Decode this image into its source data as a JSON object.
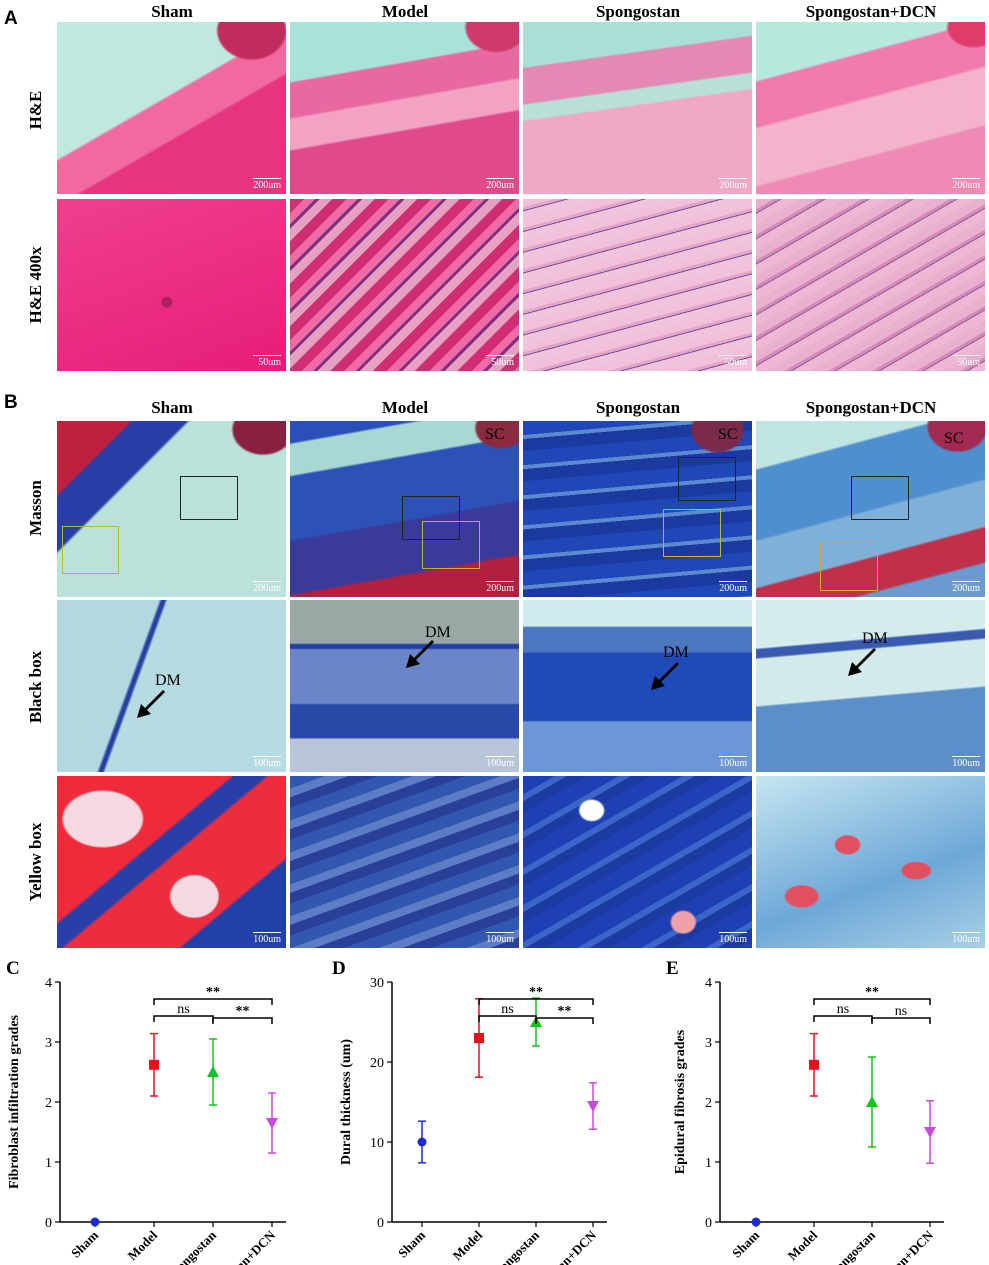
{
  "panel_a": {
    "letter": "A",
    "columns": [
      "Sham",
      "Model",
      "Spongostan",
      "Spongostan+DCN"
    ],
    "rows": [
      {
        "label": "H&E",
        "scale": "200um"
      },
      {
        "label": "H&E 400x",
        "scale": "50um"
      }
    ]
  },
  "panel_b": {
    "letter": "B",
    "columns": [
      "Sham",
      "Model",
      "Spongostan",
      "Spongostan+DCN"
    ],
    "rows": [
      {
        "label": "Masson",
        "scale": "200um"
      },
      {
        "label": "Black box",
        "scale": "100um"
      },
      {
        "label": "Yellow box",
        "scale": "100um"
      }
    ],
    "annotations": {
      "sc": "SC",
      "dm": "DM"
    }
  },
  "chart_data": [
    {
      "letter": "C",
      "type": "scatter",
      "categories": [
        "Sham",
        "Model",
        "Spongostan",
        "Spongostan+DCN"
      ],
      "ylabel": "Fibroblast infiltration grades",
      "ylim": [
        0,
        4
      ],
      "yticks": [
        0,
        1,
        2,
        3,
        4
      ],
      "values": [
        0,
        2.62,
        2.5,
        1.65
      ],
      "errors": [
        0,
        0.52,
        0.55,
        0.5
      ],
      "colors": [
        "#1a2bd6",
        "#e8101a",
        "#13c21f",
        "#c64bd8"
      ],
      "markers": [
        "circle",
        "square",
        "triangle-up",
        "triangle-down"
      ],
      "significance": [
        {
          "from": 1,
          "to": 2,
          "label": "ns"
        },
        {
          "from": 1,
          "to": 3,
          "label": "**"
        },
        {
          "from": 2,
          "to": 3,
          "label": "**"
        }
      ]
    },
    {
      "letter": "D",
      "type": "scatter",
      "categories": [
        "Sham",
        "Model",
        "Spongostan",
        "Spongostan+DCN"
      ],
      "ylabel": "Dural thickness (um)",
      "ylim": [
        0,
        30
      ],
      "yticks": [
        0,
        10,
        20,
        30
      ],
      "values": [
        10,
        23,
        25,
        14.5
      ],
      "errors": [
        2.6,
        4.9,
        3.0,
        2.9
      ],
      "colors": [
        "#1a2bd6",
        "#e8101a",
        "#13c21f",
        "#c64bd8"
      ],
      "markers": [
        "circle",
        "square",
        "triangle-up",
        "triangle-down"
      ],
      "significance": [
        {
          "from": 1,
          "to": 2,
          "label": "ns"
        },
        {
          "from": 1,
          "to": 3,
          "label": "**"
        },
        {
          "from": 2,
          "to": 3,
          "label": "**"
        }
      ]
    },
    {
      "letter": "E",
      "type": "scatter",
      "categories": [
        "Sham",
        "Model",
        "Spongostan",
        "Spongostan+DCN"
      ],
      "ylabel": "Epidural fibrosis grades",
      "ylim": [
        0,
        4
      ],
      "yticks": [
        0,
        1,
        2,
        3,
        4
      ],
      "values": [
        0,
        2.62,
        2.0,
        1.5
      ],
      "errors": [
        0,
        0.52,
        0.75,
        0.52
      ],
      "colors": [
        "#1a2bd6",
        "#e8101a",
        "#13c21f",
        "#c64bd8"
      ],
      "markers": [
        "circle",
        "square",
        "triangle-up",
        "triangle-down"
      ],
      "significance": [
        {
          "from": 1,
          "to": 2,
          "label": "ns"
        },
        {
          "from": 1,
          "to": 3,
          "label": "**"
        },
        {
          "from": 2,
          "to": 3,
          "label": "ns"
        }
      ]
    }
  ]
}
